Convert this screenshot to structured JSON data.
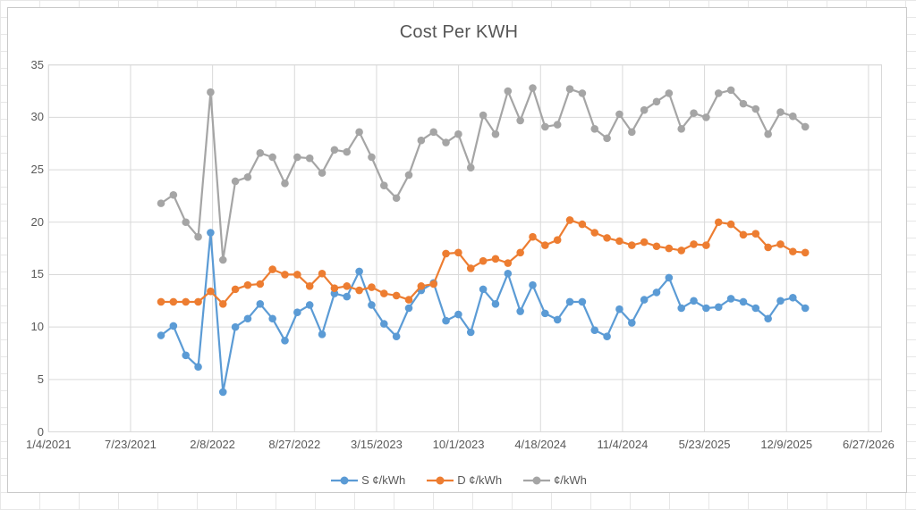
{
  "chart_data": {
    "type": "line",
    "title": "Cost Per KWH",
    "x_axis_labels": [
      "1/4/2021",
      "7/23/2021",
      "2/8/2022",
      "8/27/2022",
      "3/15/2023",
      "10/1/2023",
      "4/18/2024",
      "11/4/2024",
      "5/23/2025",
      "12/9/2025",
      "6/27/2026"
    ],
    "y_axis": {
      "min": 0,
      "max": 35,
      "step": 5,
      "tick_labels": [
        "0",
        "5",
        "10",
        "15",
        "20",
        "25",
        "30",
        "35"
      ]
    },
    "grid": true,
    "marker": "circle",
    "legend_position": "bottom",
    "points_per_series": 53,
    "x_layout": {
      "first_point_frac": 0.1371,
      "point_spacing_frac": 0.01511
    },
    "series": [
      {
        "name": "S ¢/kWh",
        "color": "#5B9BD5",
        "values": [
          9.2,
          10.1,
          7.3,
          6.2,
          19.0,
          3.8,
          10.0,
          10.8,
          12.2,
          10.8,
          8.7,
          11.4,
          12.1,
          9.3,
          13.2,
          12.9,
          15.3,
          12.1,
          10.3,
          9.1,
          11.8,
          13.5,
          14.2,
          10.6,
          11.2,
          9.5,
          13.6,
          12.2,
          15.1,
          11.5,
          14.0,
          11.3,
          10.7,
          12.4,
          12.4,
          9.7,
          9.1,
          11.7,
          10.4,
          12.6,
          13.3,
          14.7,
          11.8,
          12.5,
          11.8,
          11.9,
          12.7,
          12.4,
          11.8,
          10.8,
          12.5,
          12.8,
          11.8
        ]
      },
      {
        "name": "D ¢/kWh",
        "color": "#ED7D31",
        "values": [
          12.4,
          12.4,
          12.4,
          12.4,
          13.4,
          12.2,
          13.6,
          14.0,
          14.1,
          15.5,
          15.0,
          15.0,
          13.9,
          15.1,
          13.7,
          13.9,
          13.5,
          13.8,
          13.2,
          13.0,
          12.6,
          13.9,
          14.1,
          17.0,
          17.1,
          15.6,
          16.3,
          16.5,
          16.1,
          17.1,
          18.6,
          17.8,
          18.3,
          20.2,
          19.8,
          19.0,
          18.5,
          18.2,
          17.8,
          18.1,
          17.7,
          17.5,
          17.3,
          17.9,
          17.8,
          20.0,
          19.8,
          18.8,
          18.9,
          17.6,
          17.9,
          17.2,
          17.1
        ]
      },
      {
        "name": "¢/kWh",
        "color": "#A5A5A5",
        "values": [
          21.8,
          22.6,
          20.0,
          18.6,
          32.4,
          16.4,
          23.9,
          24.3,
          26.6,
          26.2,
          23.7,
          26.2,
          26.1,
          24.7,
          26.9,
          26.7,
          28.6,
          26.2,
          23.5,
          22.3,
          24.5,
          27.8,
          28.6,
          27.6,
          28.4,
          25.2,
          30.2,
          28.4,
          32.5,
          29.7,
          32.8,
          29.1,
          29.3,
          32.7,
          32.3,
          28.9,
          28.0,
          30.3,
          28.6,
          30.7,
          31.5,
          32.3,
          28.9,
          30.4,
          30.0,
          32.3,
          32.6,
          31.3,
          30.8,
          28.4,
          30.5,
          30.1,
          29.1
        ]
      }
    ]
  }
}
